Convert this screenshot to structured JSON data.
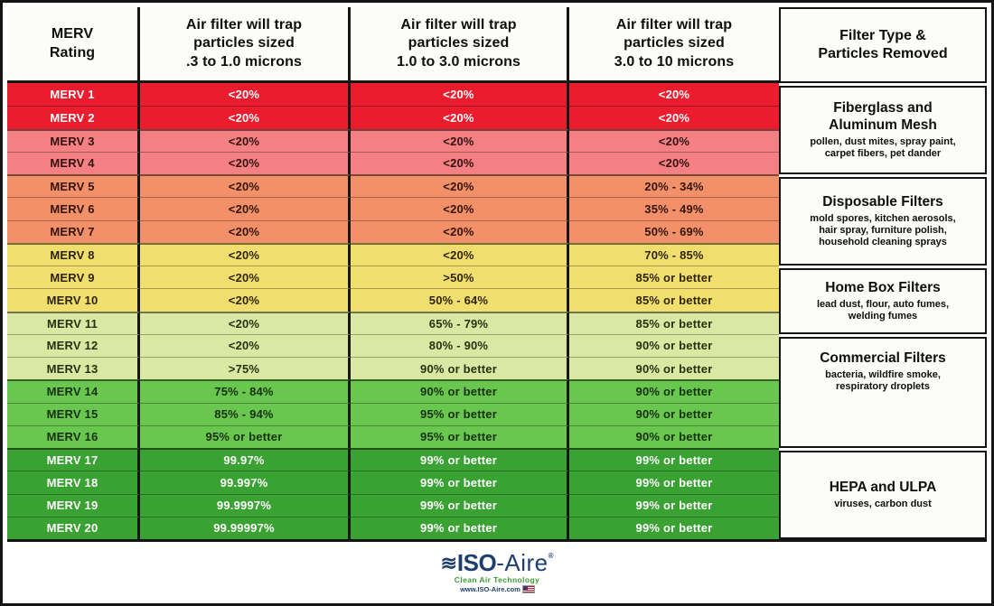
{
  "chart_data": {
    "type": "table",
    "columns": [
      "MERV\nRating",
      "Air filter will trap\nparticles sized\n.3 to 1.0 microns",
      "Air filter will trap\nparticles sized\n1.0 to 3.0 microns",
      "Air filter will trap\nparticles sized\n3.0 to 10 microns",
      "Filter Type &\nParticles Removed"
    ],
    "rows": [
      {
        "rating": "MERV 1",
        "p_03_10": "<20%",
        "p_10_30": "<20%",
        "p_30_100": "<20%"
      },
      {
        "rating": "MERV 2",
        "p_03_10": "<20%",
        "p_10_30": "<20%",
        "p_30_100": "<20%"
      },
      {
        "rating": "MERV 3",
        "p_03_10": "<20%",
        "p_10_30": "<20%",
        "p_30_100": "<20%"
      },
      {
        "rating": "MERV 4",
        "p_03_10": "<20%",
        "p_10_30": "<20%",
        "p_30_100": "<20%"
      },
      {
        "rating": "MERV 5",
        "p_03_10": "<20%",
        "p_10_30": "<20%",
        "p_30_100": "20% - 34%"
      },
      {
        "rating": "MERV 6",
        "p_03_10": "<20%",
        "p_10_30": "<20%",
        "p_30_100": "35% - 49%"
      },
      {
        "rating": "MERV 7",
        "p_03_10": "<20%",
        "p_10_30": "<20%",
        "p_30_100": "50% - 69%"
      },
      {
        "rating": "MERV 8",
        "p_03_10": "<20%",
        "p_10_30": "<20%",
        "p_30_100": "70% - 85%"
      },
      {
        "rating": "MERV 9",
        "p_03_10": "<20%",
        "p_10_30": ">50%",
        "p_30_100": "85% or better"
      },
      {
        "rating": "MERV 10",
        "p_03_10": "<20%",
        "p_10_30": "50% - 64%",
        "p_30_100": "85% or better"
      },
      {
        "rating": "MERV 11",
        "p_03_10": "<20%",
        "p_10_30": "65% - 79%",
        "p_30_100": "85% or better"
      },
      {
        "rating": "MERV 12",
        "p_03_10": "<20%",
        "p_10_30": "80% - 90%",
        "p_30_100": "90% or better"
      },
      {
        "rating": "MERV 13",
        "p_03_10": ">75%",
        "p_10_30": "90% or better",
        "p_30_100": "90% or better"
      },
      {
        "rating": "MERV 14",
        "p_03_10": "75% - 84%",
        "p_10_30": "90% or better",
        "p_30_100": "90% or better"
      },
      {
        "rating": "MERV 15",
        "p_03_10": "85% - 94%",
        "p_10_30": "95% or better",
        "p_30_100": "90% or better"
      },
      {
        "rating": "MERV 16",
        "p_03_10": "95% or better",
        "p_10_30": "95% or better",
        "p_30_100": "90% or better"
      },
      {
        "rating": "MERV 17",
        "p_03_10": "99.97%",
        "p_10_30": "99% or better",
        "p_30_100": "99% or better"
      },
      {
        "rating": "MERV 18",
        "p_03_10": "99.997%",
        "p_10_30": "99% or better",
        "p_30_100": "99% or better"
      },
      {
        "rating": "MERV 19",
        "p_03_10": "99.9997%",
        "p_10_30": "99% or better",
        "p_30_100": "99% or better"
      },
      {
        "rating": "MERV 20",
        "p_03_10": "99.99997%",
        "p_10_30": "99% or better",
        "p_30_100": "99% or better"
      }
    ]
  },
  "color_groups": [
    {
      "from": 1,
      "to": 2,
      "bg": "#EB1C2D",
      "text": "#FFFFFF"
    },
    {
      "from": 3,
      "to": 4,
      "bg": "#F48083",
      "text": "#33100E"
    },
    {
      "from": 5,
      "to": 7,
      "bg": "#F2906A",
      "text": "#33150A"
    },
    {
      "from": 8,
      "to": 10,
      "bg": "#F1DF6D",
      "text": "#2E2407"
    },
    {
      "from": 11,
      "to": 13,
      "bg": "#DAE8A3",
      "text": "#27310D"
    },
    {
      "from": 14,
      "to": 16,
      "bg": "#69C64F",
      "text": "#16300C"
    },
    {
      "from": 17,
      "to": 20,
      "bg": "#3AA133",
      "text": "#FFFFFF"
    }
  ],
  "filter_groups": [
    {
      "title": "Fiberglass and\nAluminum Mesh",
      "desc": "pollen, dust mites, spray paint,\ncarpet fibers, pet dander",
      "rows": 4,
      "align": "center"
    },
    {
      "title": "Disposable Filters",
      "desc": "mold spores, kitchen aerosols,\nhair spray, furniture polish,\nhousehold cleaning sprays",
      "rows": 4,
      "align": "center"
    },
    {
      "title": "Home Box Filters",
      "desc": "lead dust, flour, auto fumes,\nwelding fumes",
      "rows": 3,
      "align": "center"
    },
    {
      "title": "Commercial Filters",
      "desc": "bacteria, wildfire smoke,\nrespiratory droplets",
      "rows": 5,
      "align": "top"
    },
    {
      "title": "HEPA and ULPA",
      "desc": "viruses, carbon dust",
      "rows": 4,
      "align": "center"
    }
  ],
  "footer": {
    "logo": {
      "wave": "≋",
      "name_bold": "ISO",
      "name_light": "-Aire",
      "reg": "®",
      "color": "#1E3E6E"
    },
    "tagline": "Clean Air Technology",
    "tagline_color": "#3E9B35",
    "website": "www.ISO-Aire.com"
  }
}
